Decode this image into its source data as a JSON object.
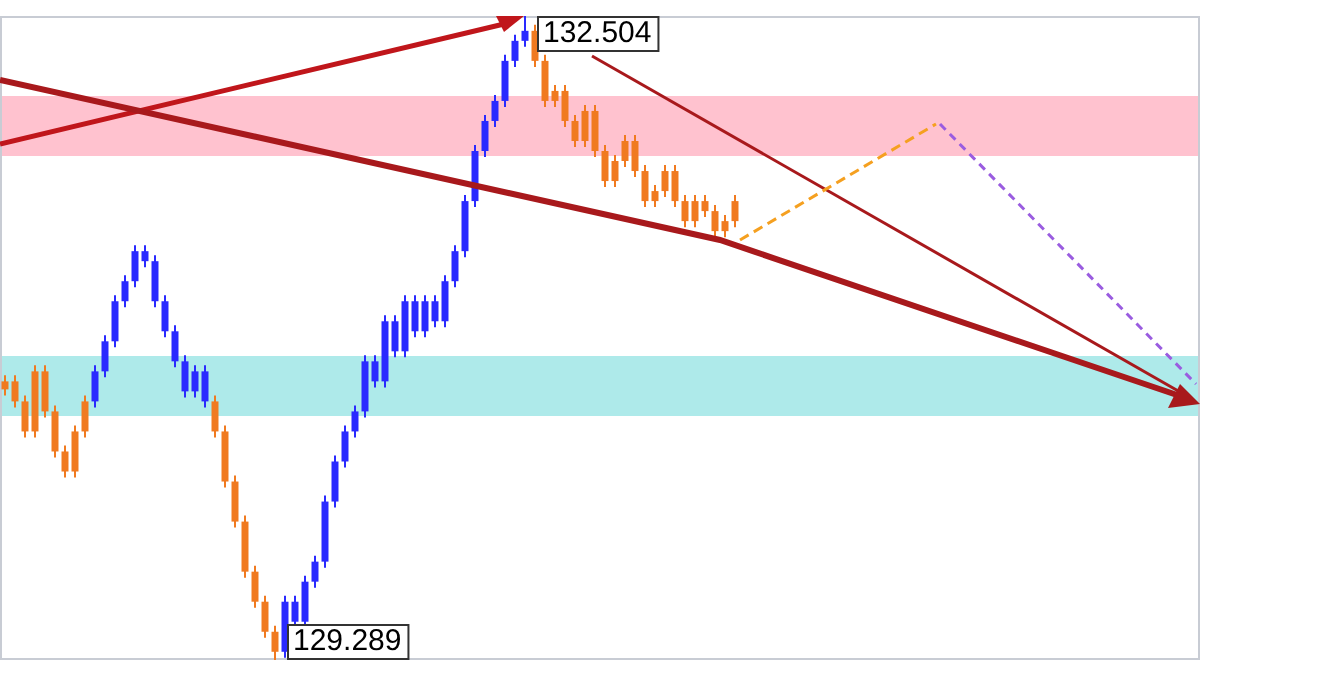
{
  "chart_data": {
    "type": "candlestick",
    "categories": [
      null,
      null,
      null,
      null,
      null,
      null,
      null,
      null,
      null,
      null,
      null,
      null,
      null,
      null,
      null,
      null,
      null,
      null,
      null,
      null,
      null,
      null,
      null,
      null,
      null,
      null,
      null,
      null,
      null,
      null,
      null,
      null,
      null,
      null,
      null,
      null,
      null,
      null,
      null,
      null,
      null,
      null,
      null,
      null,
      null,
      null,
      null,
      null,
      null,
      null,
      null,
      null,
      null,
      null,
      null,
      null,
      null,
      null,
      null,
      null,
      null,
      null,
      null,
      null,
      null,
      null,
      null,
      null,
      null,
      null,
      null,
      null,
      null,
      null,
      null,
      null,
      null,
      null,
      null,
      null,
      null,
      null,
      null,
      null,
      null,
      null,
      null,
      null,
      null,
      null,
      null,
      null,
      null,
      null,
      null,
      null,
      null,
      null,
      null,
      null,
      null,
      null,
      null,
      null,
      null,
      null,
      null,
      null,
      null,
      null,
      null,
      null,
      null,
      null,
      null,
      null,
      null,
      null,
      null,
      null
    ],
    "ohlc": [
      [
        130.68,
        130.71,
        130.61,
        130.64
      ],
      [
        130.68,
        130.71,
        130.55,
        130.58
      ],
      [
        130.58,
        130.61,
        130.4,
        130.43
      ],
      [
        130.73,
        130.76,
        130.4,
        130.43
      ],
      [
        130.73,
        130.76,
        130.5,
        130.53
      ],
      [
        130.53,
        130.56,
        130.3,
        130.33
      ],
      [
        130.33,
        130.36,
        130.2,
        130.23
      ],
      [
        130.43,
        130.46,
        130.2,
        130.23
      ],
      [
        130.58,
        130.61,
        130.4,
        130.43
      ],
      [
        130.58,
        130.76,
        130.55,
        130.73
      ],
      [
        130.73,
        130.91,
        130.7,
        130.88
      ],
      [
        130.88,
        131.11,
        130.85,
        131.08
      ],
      [
        131.08,
        131.21,
        131.05,
        131.18
      ],
      [
        131.18,
        131.36,
        131.15,
        131.33
      ],
      [
        131.28,
        131.36,
        131.25,
        131.33
      ],
      [
        131.08,
        131.31,
        131.05,
        131.28
      ],
      [
        130.93,
        131.11,
        130.9,
        131.08
      ],
      [
        130.78,
        130.96,
        130.75,
        130.93
      ],
      [
        130.63,
        130.81,
        130.6,
        130.78
      ],
      [
        130.63,
        130.76,
        130.6,
        130.73
      ],
      [
        130.58,
        130.76,
        130.55,
        130.73
      ],
      [
        130.58,
        130.61,
        130.4,
        130.43
      ],
      [
        130.43,
        130.46,
        130.15,
        130.18
      ],
      [
        130.18,
        130.21,
        129.95,
        129.98
      ],
      [
        129.98,
        130.01,
        129.7,
        129.73
      ],
      [
        129.73,
        129.76,
        129.55,
        129.58
      ],
      [
        129.58,
        129.61,
        129.4,
        129.43
      ],
      [
        129.43,
        129.46,
        129.289,
        129.33
      ],
      [
        129.33,
        129.61,
        129.3,
        129.58
      ],
      [
        129.48,
        129.61,
        129.45,
        129.58
      ],
      [
        129.48,
        129.71,
        129.45,
        129.68
      ],
      [
        129.68,
        129.81,
        129.65,
        129.78
      ],
      [
        129.78,
        130.11,
        129.75,
        130.08
      ],
      [
        130.08,
        130.31,
        130.05,
        130.28
      ],
      [
        130.28,
        130.46,
        130.25,
        130.43
      ],
      [
        130.43,
        130.56,
        130.4,
        130.53
      ],
      [
        130.53,
        130.81,
        130.5,
        130.78
      ],
      [
        130.68,
        130.81,
        130.65,
        130.78
      ],
      [
        130.68,
        131.01,
        130.65,
        130.98
      ],
      [
        130.83,
        131.01,
        130.8,
        130.98
      ],
      [
        130.83,
        131.11,
        130.8,
        131.08
      ],
      [
        130.93,
        131.11,
        130.9,
        131.08
      ],
      [
        130.93,
        131.11,
        130.9,
        131.08
      ],
      [
        130.98,
        131.11,
        130.95,
        131.08
      ],
      [
        130.98,
        131.21,
        130.95,
        131.18
      ],
      [
        131.18,
        131.36,
        131.15,
        131.33
      ],
      [
        131.33,
        131.61,
        131.3,
        131.58
      ],
      [
        131.58,
        131.86,
        131.55,
        131.83
      ],
      [
        131.83,
        132.01,
        131.8,
        131.98
      ],
      [
        131.98,
        132.11,
        131.95,
        132.08
      ],
      [
        132.08,
        132.31,
        132.05,
        132.28
      ],
      [
        132.28,
        132.41,
        132.25,
        132.38
      ],
      [
        132.38,
        132.504,
        132.35,
        132.43
      ],
      [
        132.43,
        132.46,
        132.25,
        132.28
      ],
      [
        132.28,
        132.31,
        132.05,
        132.08
      ],
      [
        132.13,
        132.16,
        132.05,
        132.08
      ],
      [
        132.13,
        132.16,
        131.95,
        131.98
      ],
      [
        131.98,
        132.01,
        131.85,
        131.88
      ],
      [
        132.03,
        132.06,
        131.85,
        131.88
      ],
      [
        132.03,
        132.06,
        131.8,
        131.83
      ],
      [
        131.83,
        131.86,
        131.65,
        131.68
      ],
      [
        131.78,
        131.81,
        131.65,
        131.68
      ],
      [
        131.88,
        131.91,
        131.75,
        131.78
      ],
      [
        131.88,
        131.91,
        131.7,
        131.73
      ],
      [
        131.73,
        131.76,
        131.55,
        131.58
      ],
      [
        131.63,
        131.66,
        131.55,
        131.58
      ],
      [
        131.73,
        131.76,
        131.6,
        131.63
      ],
      [
        131.73,
        131.76,
        131.55,
        131.58
      ],
      [
        131.58,
        131.61,
        131.45,
        131.48
      ],
      [
        131.58,
        131.61,
        131.45,
        131.48
      ],
      [
        131.58,
        131.61,
        131.5,
        131.53
      ],
      [
        131.53,
        131.56,
        131.4,
        131.43
      ],
      [
        131.48,
        131.51,
        131.4,
        131.43
      ],
      [
        131.58,
        131.61,
        131.45,
        131.48
      ],
      null,
      null,
      null,
      null,
      null,
      null,
      null,
      null,
      null,
      null,
      null,
      null,
      null,
      null,
      null,
      null,
      null,
      null,
      null,
      null,
      null,
      null,
      null,
      null,
      null,
      null,
      null,
      null,
      null,
      null,
      null,
      null,
      null,
      null,
      null,
      null,
      null,
      null,
      null,
      null,
      null,
      null,
      null,
      null,
      null,
      null
    ],
    "colors": [
      "#f07a20",
      "#f07a20",
      "#f07a20",
      "#f07a20",
      "#f07a20",
      "#f07a20",
      "#f07a20",
      "#f07a20",
      "#f07a20",
      "#2a2aff",
      "#2a2aff",
      "#2a2aff",
      "#2a2aff",
      "#2a2aff",
      "#2a2aff",
      "#2a2aff",
      "#2a2aff",
      "#2a2aff",
      "#2a2aff",
      "#2a2aff",
      "#2a2aff",
      "#f07a20",
      "#f07a20",
      "#f07a20",
      "#f07a20",
      "#f07a20",
      "#f07a20",
      "#f07a20",
      "#2a2aff",
      "#2a2aff",
      "#2a2aff",
      "#2a2aff",
      "#2a2aff",
      "#2a2aff",
      "#2a2aff",
      "#2a2aff",
      "#2a2aff",
      "#2a2aff",
      "#2a2aff",
      "#2a2aff",
      "#2a2aff",
      "#2a2aff",
      "#2a2aff",
      "#2a2aff",
      "#2a2aff",
      "#2a2aff",
      "#2a2aff",
      "#2a2aff",
      "#2a2aff",
      "#2a2aff",
      "#2a2aff",
      "#2a2aff",
      "#2a2aff",
      "#f07a20",
      "#f07a20",
      "#f07a20",
      "#f07a20",
      "#f07a20",
      "#f07a20",
      "#f07a20",
      "#f07a20",
      "#f07a20",
      "#f07a20",
      "#f07a20",
      "#f07a20",
      "#f07a20",
      "#f07a20",
      "#f07a20",
      "#f07a20",
      "#f07a20",
      "#f07a20",
      "#f07a20",
      "#f07a20",
      "#f07a20",
      null,
      null,
      null,
      null,
      null,
      null,
      null,
      null,
      null,
      null,
      null,
      null,
      null,
      null,
      null,
      null,
      null,
      null,
      null,
      null,
      null,
      null,
      null,
      null,
      null,
      null,
      null,
      null,
      null,
      null,
      null,
      null,
      null,
      null,
      null,
      null,
      null,
      null,
      null,
      null,
      null,
      null,
      null,
      null,
      null,
      null
    ],
    "bands": [
      {
        "axis": "y",
        "from": 131.805,
        "to": 132.105,
        "color": "#ffc2cf"
      },
      {
        "axis": "y",
        "from": 130.507,
        "to": 130.807,
        "color": "#aeeaea"
      }
    ],
    "annotations": [
      "132.504",
      "129.289"
    ],
    "legend": false
  }
}
